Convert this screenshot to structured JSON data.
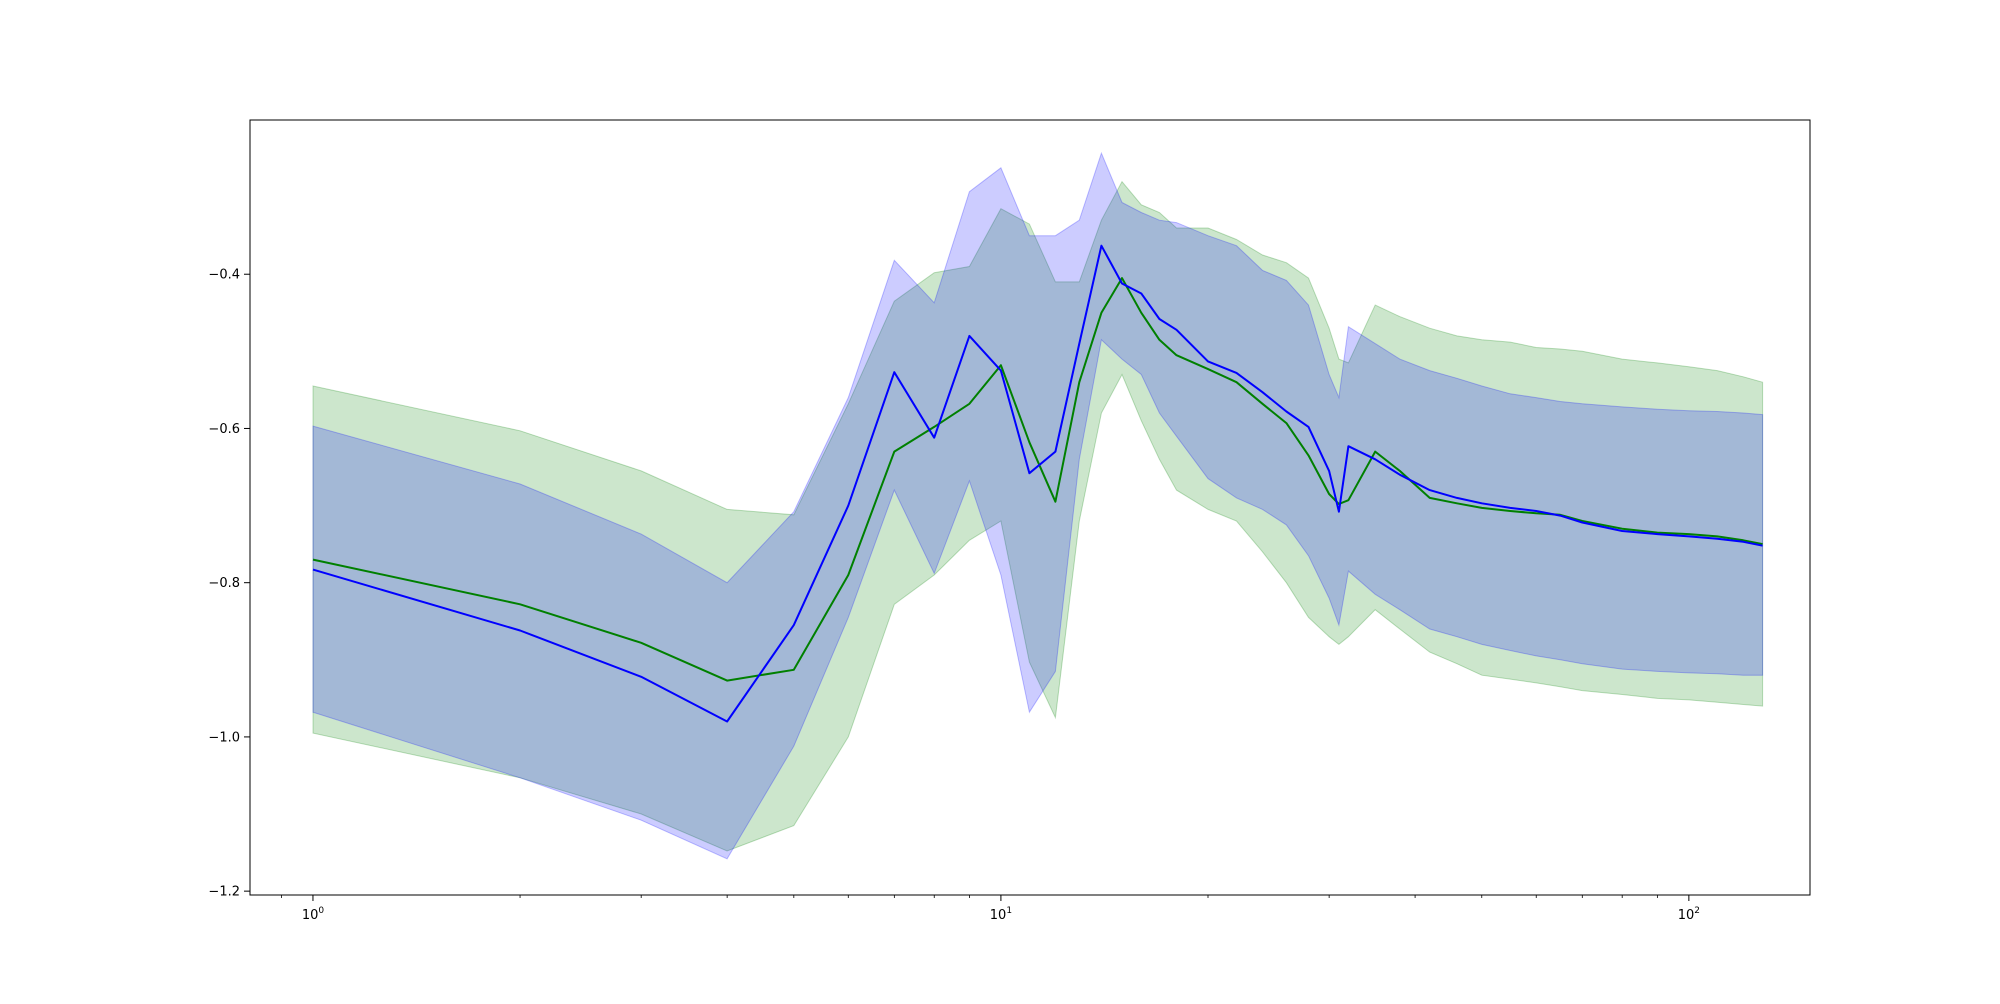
{
  "chart_data": {
    "type": "line",
    "title": "",
    "xlabel": "",
    "ylabel": "",
    "xscale": "log",
    "xlim": [
      0.81,
      150
    ],
    "ylim": [
      -1.205,
      -0.2
    ],
    "grid": false,
    "legend": "none",
    "x_ticks": [
      {
        "value": 1,
        "base": "10",
        "exp": "0"
      },
      {
        "value": 10,
        "base": "10",
        "exp": "1"
      },
      {
        "value": 100,
        "base": "10",
        "exp": "2"
      }
    ],
    "y_ticks": [
      {
        "value": -1.2,
        "label": "−1.2"
      },
      {
        "value": -1.0,
        "label": "−1.0"
      },
      {
        "value": -0.8,
        "label": "−0.8"
      },
      {
        "value": -0.6,
        "label": "−0.6"
      },
      {
        "value": -0.4,
        "label": "−0.4"
      }
    ],
    "series": [
      {
        "color": "#008000",
        "band_color": "#008000",
        "band_opacity": 0.2,
        "x": [
          1,
          2,
          3,
          4,
          5,
          6,
          7,
          8,
          9,
          10,
          11,
          12,
          13,
          14,
          15,
          16,
          17,
          18,
          20,
          22,
          24,
          26,
          28,
          30,
          31,
          32,
          35,
          38,
          42,
          46,
          50,
          55,
          60,
          65,
          70,
          80,
          90,
          100,
          110,
          120,
          128
        ],
        "mean": [
          -0.77,
          -0.828,
          -0.878,
          -0.927,
          -0.913,
          -0.79,
          -0.63,
          -0.598,
          -0.568,
          -0.518,
          -0.618,
          -0.695,
          -0.54,
          -0.45,
          -0.405,
          -0.45,
          -0.485,
          -0.505,
          -0.523,
          -0.54,
          -0.568,
          -0.593,
          -0.635,
          -0.685,
          -0.698,
          -0.693,
          -0.63,
          -0.655,
          -0.69,
          -0.697,
          -0.703,
          -0.707,
          -0.71,
          -0.712,
          -0.72,
          -0.73,
          -0.735,
          -0.737,
          -0.74,
          -0.745,
          -0.75
        ],
        "upper": [
          -0.545,
          -0.603,
          -0.655,
          -0.705,
          -0.712,
          -0.568,
          -0.435,
          -0.398,
          -0.39,
          -0.315,
          -0.335,
          -0.41,
          -0.41,
          -0.33,
          -0.28,
          -0.31,
          -0.32,
          -0.34,
          -0.34,
          -0.355,
          -0.375,
          -0.385,
          -0.405,
          -0.47,
          -0.51,
          -0.515,
          -0.44,
          -0.455,
          -0.47,
          -0.48,
          -0.485,
          -0.488,
          -0.495,
          -0.497,
          -0.5,
          -0.51,
          -0.515,
          -0.52,
          -0.525,
          -0.533,
          -0.54
        ],
        "lower": [
          -0.995,
          -1.053,
          -1.1,
          -1.148,
          -1.115,
          -1.0,
          -0.828,
          -0.79,
          -0.745,
          -0.72,
          -0.903,
          -0.975,
          -0.72,
          -0.58,
          -0.53,
          -0.59,
          -0.64,
          -0.68,
          -0.705,
          -0.72,
          -0.76,
          -0.8,
          -0.845,
          -0.87,
          -0.88,
          -0.87,
          -0.835,
          -0.86,
          -0.89,
          -0.905,
          -0.92,
          -0.925,
          -0.93,
          -0.935,
          -0.94,
          -0.945,
          -0.95,
          -0.952,
          -0.955,
          -0.958,
          -0.96
        ]
      },
      {
        "color": "#0000ff",
        "band_color": "#0000ff",
        "band_opacity": 0.2,
        "x": [
          1,
          2,
          3,
          4,
          5,
          6,
          7,
          8,
          9,
          10,
          11,
          12,
          13,
          14,
          15,
          16,
          17,
          18,
          20,
          22,
          24,
          26,
          28,
          30,
          31,
          32,
          35,
          38,
          42,
          46,
          50,
          55,
          60,
          65,
          70,
          80,
          90,
          100,
          110,
          120,
          128
        ],
        "mean": [
          -0.783,
          -0.862,
          -0.922,
          -0.98,
          -0.855,
          -0.7,
          -0.527,
          -0.612,
          -0.48,
          -0.525,
          -0.658,
          -0.63,
          -0.49,
          -0.363,
          -0.412,
          -0.425,
          -0.458,
          -0.472,
          -0.513,
          -0.528,
          -0.553,
          -0.578,
          -0.598,
          -0.655,
          -0.708,
          -0.623,
          -0.64,
          -0.66,
          -0.68,
          -0.69,
          -0.697,
          -0.703,
          -0.707,
          -0.713,
          -0.722,
          -0.733,
          -0.737,
          -0.74,
          -0.743,
          -0.747,
          -0.752
        ],
        "upper": [
          -0.597,
          -0.672,
          -0.737,
          -0.8,
          -0.708,
          -0.56,
          -0.382,
          -0.437,
          -0.293,
          -0.262,
          -0.35,
          -0.35,
          -0.33,
          -0.243,
          -0.307,
          -0.32,
          -0.33,
          -0.333,
          -0.35,
          -0.363,
          -0.395,
          -0.408,
          -0.44,
          -0.53,
          -0.56,
          -0.468,
          -0.49,
          -0.51,
          -0.525,
          -0.535,
          -0.545,
          -0.555,
          -0.56,
          -0.565,
          -0.568,
          -0.572,
          -0.575,
          -0.577,
          -0.578,
          -0.58,
          -0.582
        ],
        "lower": [
          -0.968,
          -1.053,
          -1.108,
          -1.158,
          -1.012,
          -0.845,
          -0.68,
          -0.788,
          -0.668,
          -0.79,
          -0.968,
          -0.915,
          -0.64,
          -0.485,
          -0.51,
          -0.53,
          -0.58,
          -0.61,
          -0.665,
          -0.69,
          -0.705,
          -0.725,
          -0.765,
          -0.82,
          -0.855,
          -0.785,
          -0.815,
          -0.835,
          -0.86,
          -0.87,
          -0.88,
          -0.888,
          -0.895,
          -0.9,
          -0.905,
          -0.912,
          -0.915,
          -0.917,
          -0.918,
          -0.92,
          -0.92
        ]
      }
    ]
  }
}
